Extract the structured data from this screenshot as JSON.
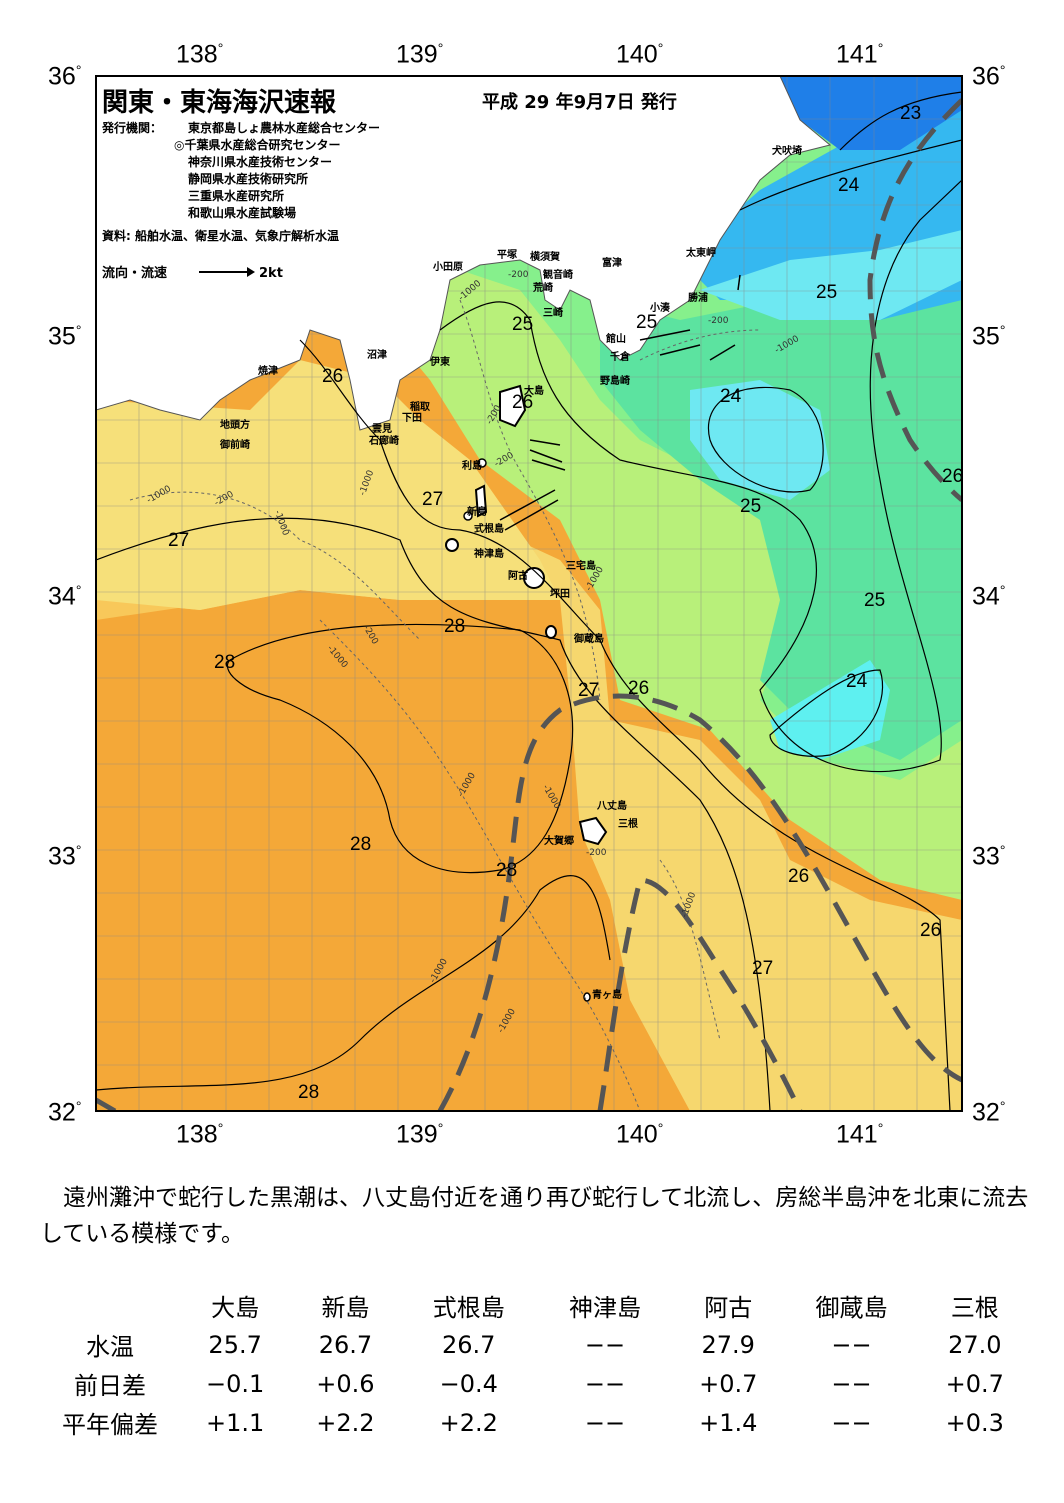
{
  "header": {
    "title": "関東・東海海沢速報",
    "issue_date": "平成 29 年9月7日 発行",
    "agencies_label": "発行機関：",
    "agencies": [
      "東京都島しょ農林水産総合センター",
      "◎千葉県水産総合研究センター",
      "神奈川県水産技術センター",
      "静岡県水産技術研究所",
      "三重県水産研究所",
      "和歌山県水産試験場"
    ],
    "sources": "資料: 船舶水温、衛星水温、気象庁解析水温",
    "legend_label": "流向・流速",
    "legend_speed": "2kt"
  },
  "axes": {
    "lon_labels": [
      "138",
      "139",
      "140",
      "141"
    ],
    "lat_labels": [
      "36",
      "35",
      "34",
      "33",
      "32"
    ],
    "degree": "°"
  },
  "places": {
    "inubozaki": "犬吠埼",
    "taitomisaki": "太東岬",
    "katsuura": "勝浦",
    "kominato": "小湊",
    "tateyama": "館山",
    "chikura": "千倉",
    "nojimazaki": "野島崎",
    "futtsu": "富津",
    "kannonzaki": "観音崎",
    "yokosuka": "横須賀",
    "hiratsuka": "平塚",
    "odawara": "小田原",
    "arasaki": "荒崎",
    "misaki": "三崎",
    "numazu": "沼津",
    "ito": "伊東",
    "inatori": "稲取",
    "shimoda": "下田",
    "kumomi": "雲見",
    "irozaki": "石廊崎",
    "yaizu": "焼津",
    "jitogata": "地頭方",
    "omaezaki": "御前崎",
    "oshima": "大島",
    "toshima": "利島",
    "niijima": "新島",
    "shikinejima": "式根島",
    "kozushima": "神津島",
    "ako": "阿古",
    "miyakejima": "三宅島",
    "tsubota": "坪田",
    "mikurajima": "御蔵島",
    "hachijojima": "八丈島",
    "mitsune": "三根",
    "okago": "大賀郷",
    "aogashima": "青ヶ島"
  },
  "isotherm_labels": [
    "23",
    "24",
    "25",
    "26",
    "27",
    "28"
  ],
  "depth_labels": [
    "-200",
    "-1000"
  ],
  "summary": "遠州灘沖で蛇行した黒潮は、八丈島付近を通り再び蛇行して北流し、房総半島沖を北東に流去している模様です。",
  "table": {
    "columns": [
      "大島",
      "新島",
      "式根島",
      "神津島",
      "阿古",
      "御蔵島",
      "三根"
    ],
    "rows": [
      {
        "label": "水温",
        "values": [
          "25.7",
          "26.7",
          "26.7",
          "−−",
          "27.9",
          "−−",
          "27.0"
        ]
      },
      {
        "label": "前日差",
        "values": [
          "−0.1",
          "+0.6",
          "−0.4",
          "−−",
          "+0.7",
          "−−",
          "+0.7"
        ]
      },
      {
        "label": "平年偏差",
        "values": [
          "+1.1",
          "+2.2",
          "+2.2",
          "−−",
          "+1.4",
          "−−",
          "+0.3"
        ]
      }
    ]
  },
  "colors": {
    "t23": "#1f7fe8",
    "t24": "#35b8f0",
    "t24b": "#6ee8f2",
    "t25": "#5ce3a0",
    "t25b": "#86f08c",
    "t26": "#b8f07a",
    "t27": "#f6e07a",
    "t27b": "#f8c85a",
    "t28": "#f4a838",
    "kuroshio": "#555555",
    "land": "#ffffff"
  }
}
